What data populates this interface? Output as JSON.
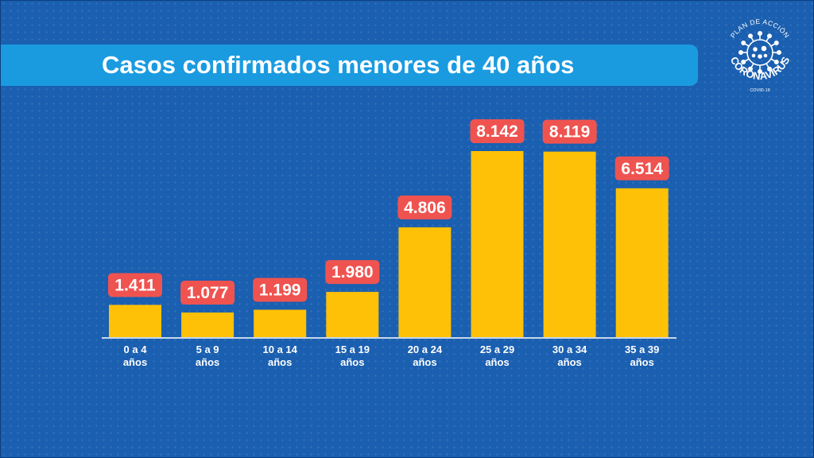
{
  "title": "Casos confirmados menores de 40 años",
  "logo": {
    "top_text": "PLAN DE ACCIÓN",
    "main_text": "CORONAVIRUS",
    "sub_text": "COVID-19",
    "icon": "virus-icon"
  },
  "colors": {
    "background": "#1a5fb0",
    "title_bar": "#1a9be0",
    "bar": "#ffc107",
    "label_box": "#ef5350",
    "text": "#ffffff"
  },
  "chart_data": {
    "type": "bar",
    "title": "Casos confirmados menores de 40 años",
    "xlabel": "",
    "ylabel": "",
    "grid": false,
    "categories": [
      [
        "0 a 4",
        "años"
      ],
      [
        "5 a 9",
        "años"
      ],
      [
        "10 a 14",
        "años"
      ],
      [
        "15 a 19",
        "años"
      ],
      [
        "20 a 24",
        "años"
      ],
      [
        "25 a 29",
        "años"
      ],
      [
        "30 a 34",
        "años"
      ],
      [
        "35 a 39",
        "años"
      ]
    ],
    "values": [
      1411,
      1077,
      1199,
      1980,
      4806,
      8142,
      8119,
      6514
    ],
    "value_labels": [
      "1.411",
      "1.077",
      "1.199",
      "1.980",
      "4.806",
      "8.142",
      "8.119",
      "6.514"
    ],
    "ylim": [
      0,
      8142
    ]
  }
}
